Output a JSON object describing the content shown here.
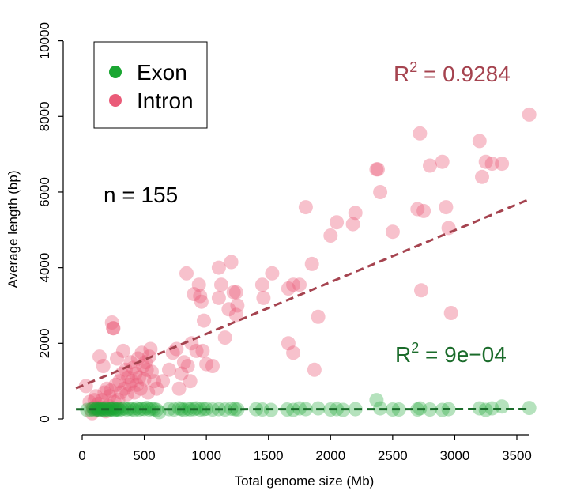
{
  "chart_data": {
    "type": "scatter",
    "xlabel": "Total genome size (Mb)",
    "ylabel": "Average length (bp)",
    "xlim": [
      -50,
      3700
    ],
    "ylim": [
      0,
      10000
    ],
    "xticks": [
      "0",
      "500",
      "1000",
      "1500",
      "2000",
      "2500",
      "3000",
      "3500"
    ],
    "xtick_values": [
      0,
      500,
      1000,
      1500,
      2000,
      2500,
      3000,
      3500
    ],
    "yticks": [
      "0",
      "2000",
      "4000",
      "6000",
      "8000",
      "10000"
    ],
    "ytick_values": [
      0,
      2000,
      4000,
      6000,
      8000,
      10000
    ],
    "legend": {
      "position": "top-left",
      "entries": [
        "Exon",
        "Intron"
      ]
    },
    "annotations": {
      "n_label": "n = 155",
      "intron_r2": {
        "base": "R",
        "sup": "2",
        "rest": " = 0.9284"
      },
      "exon_r2": {
        "base": "R",
        "sup": "2",
        "rest": " = 9e−04"
      }
    },
    "colors": {
      "exon": "#1aa632",
      "intron": "#ea5b78",
      "exon_fit": "#1a6b2a",
      "intron_fit": "#a5434f"
    },
    "series": [
      {
        "name": "Exon",
        "fit": {
          "intercept": 255,
          "slope": 0.002,
          "x_range": [
            -50,
            3600
          ]
        },
        "points": [
          [
            40,
            240
          ],
          [
            70,
            250
          ],
          [
            90,
            270
          ],
          [
            100,
            230
          ],
          [
            110,
            260
          ],
          [
            120,
            280
          ],
          [
            130,
            250
          ],
          [
            140,
            240
          ],
          [
            150,
            270
          ],
          [
            160,
            250
          ],
          [
            170,
            260
          ],
          [
            180,
            240
          ],
          [
            190,
            280
          ],
          [
            200,
            250
          ],
          [
            210,
            230
          ],
          [
            220,
            270
          ],
          [
            230,
            260
          ],
          [
            240,
            250
          ],
          [
            250,
            280
          ],
          [
            260,
            240
          ],
          [
            270,
            260
          ],
          [
            280,
            250
          ],
          [
            290,
            270
          ],
          [
            300,
            240
          ],
          [
            320,
            260
          ],
          [
            340,
            280
          ],
          [
            360,
            250
          ],
          [
            380,
            270
          ],
          [
            400,
            260
          ],
          [
            420,
            240
          ],
          [
            440,
            280
          ],
          [
            460,
            250
          ],
          [
            480,
            270
          ],
          [
            500,
            260
          ],
          [
            520,
            290
          ],
          [
            540,
            250
          ],
          [
            560,
            270
          ],
          [
            580,
            260
          ],
          [
            600,
            240
          ],
          [
            620,
            180
          ],
          [
            700,
            260
          ],
          [
            740,
            250
          ],
          [
            780,
            280
          ],
          [
            800,
            260
          ],
          [
            820,
            240
          ],
          [
            850,
            270
          ],
          [
            870,
            250
          ],
          [
            900,
            260
          ],
          [
            920,
            280
          ],
          [
            950,
            250
          ],
          [
            980,
            260
          ],
          [
            1000,
            270
          ],
          [
            1050,
            250
          ],
          [
            1100,
            260
          ],
          [
            1150,
            250
          ],
          [
            1200,
            270
          ],
          [
            1230,
            260
          ],
          [
            1250,
            250
          ],
          [
            1400,
            260
          ],
          [
            1450,
            250
          ],
          [
            1520,
            240
          ],
          [
            1650,
            250
          ],
          [
            1700,
            240
          ],
          [
            1750,
            280
          ],
          [
            1800,
            260
          ],
          [
            1900,
            280
          ],
          [
            2000,
            250
          ],
          [
            2050,
            260
          ],
          [
            2100,
            240
          ],
          [
            2200,
            260
          ],
          [
            2370,
            500
          ],
          [
            2400,
            280
          ],
          [
            2500,
            250
          ],
          [
            2550,
            250
          ],
          [
            2700,
            250
          ],
          [
            2720,
            280
          ],
          [
            2800,
            250
          ],
          [
            2900,
            240
          ],
          [
            2950,
            260
          ],
          [
            3200,
            280
          ],
          [
            3250,
            240
          ],
          [
            3300,
            280
          ],
          [
            3380,
            330
          ],
          [
            3600,
            290
          ]
        ]
      },
      {
        "name": "Intron",
        "fit": {
          "intercept": 880,
          "slope": 1.37,
          "x_range": [
            -50,
            3600
          ]
        },
        "points": [
          [
            30,
            870
          ],
          [
            60,
            450
          ],
          [
            80,
            150
          ],
          [
            90,
            300
          ],
          [
            100,
            500
          ],
          [
            110,
            600
          ],
          [
            120,
            250
          ],
          [
            130,
            400
          ],
          [
            140,
            1650
          ],
          [
            150,
            300
          ],
          [
            160,
            500
          ],
          [
            170,
            1400
          ],
          [
            180,
            700
          ],
          [
            190,
            200
          ],
          [
            200,
            800
          ],
          [
            210,
            350
          ],
          [
            220,
            600
          ],
          [
            230,
            750
          ],
          [
            240,
            2550
          ],
          [
            250,
            2400
          ],
          [
            260,
            450
          ],
          [
            270,
            900
          ],
          [
            280,
            1600
          ],
          [
            290,
            500
          ],
          [
            300,
            1000
          ],
          [
            310,
            700
          ],
          [
            320,
            1200
          ],
          [
            330,
            1800
          ],
          [
            340,
            800
          ],
          [
            350,
            1300
          ],
          [
            360,
            650
          ],
          [
            370,
            1100
          ],
          [
            380,
            900
          ],
          [
            390,
            1500
          ],
          [
            400,
            1000
          ],
          [
            410,
            1350
          ],
          [
            420,
            700
          ],
          [
            430,
            1200
          ],
          [
            440,
            900
          ],
          [
            450,
            1600
          ],
          [
            460,
            1100
          ],
          [
            470,
            800
          ],
          [
            480,
            1750
          ],
          [
            490,
            1400
          ],
          [
            500,
            1050
          ],
          [
            510,
            1500
          ],
          [
            520,
            1300
          ],
          [
            530,
            700
          ],
          [
            540,
            1650
          ],
          [
            560,
            1250
          ],
          [
            580,
            1000
          ],
          [
            600,
            800
          ],
          [
            650,
            1000
          ],
          [
            700,
            1300
          ],
          [
            730,
            1750
          ],
          [
            760,
            1850
          ],
          [
            780,
            800
          ],
          [
            800,
            1200
          ],
          [
            820,
            1500
          ],
          [
            840,
            3850
          ],
          [
            850,
            1400
          ],
          [
            870,
            1000
          ],
          [
            880,
            2000
          ],
          [
            900,
            3300
          ],
          [
            920,
            1800
          ],
          [
            940,
            3550
          ],
          [
            950,
            3250
          ],
          [
            960,
            3100
          ],
          [
            970,
            1800
          ],
          [
            980,
            2600
          ],
          [
            1000,
            1450
          ],
          [
            1050,
            1400
          ],
          [
            1100,
            4000
          ],
          [
            1120,
            3550
          ],
          [
            1150,
            2150
          ],
          [
            1180,
            2900
          ],
          [
            1200,
            4150
          ],
          [
            1220,
            3350
          ],
          [
            1240,
            3350
          ],
          [
            1250,
            3000
          ],
          [
            1450,
            3550
          ],
          [
            1460,
            3200
          ],
          [
            1530,
            3850
          ],
          [
            1660,
            3450
          ],
          [
            1700,
            3550
          ],
          [
            1750,
            3550
          ],
          [
            1800,
            5600
          ],
          [
            1850,
            4100
          ],
          [
            1870,
            1300
          ],
          [
            1900,
            2700
          ],
          [
            2000,
            4850
          ],
          [
            2050,
            5200
          ],
          [
            2180,
            5150
          ],
          [
            2200,
            5450
          ],
          [
            2370,
            6600
          ],
          [
            2380,
            6600
          ],
          [
            2400,
            6000
          ],
          [
            2500,
            4950
          ],
          [
            2700,
            5550
          ],
          [
            2720,
            7550
          ],
          [
            2730,
            3400
          ],
          [
            2750,
            5500
          ],
          [
            2800,
            6700
          ],
          [
            2900,
            6800
          ],
          [
            2930,
            5600
          ],
          [
            2950,
            5050
          ],
          [
            2970,
            2800
          ],
          [
            3200,
            7350
          ],
          [
            3220,
            6400
          ],
          [
            3250,
            6800
          ],
          [
            3300,
            6750
          ],
          [
            3380,
            6750
          ],
          [
            3600,
            8050
          ],
          [
            1700,
            1750
          ],
          [
            1660,
            2000
          ],
          [
            1240,
            2750
          ],
          [
            1100,
            3200
          ],
          [
            550,
            1850
          ],
          [
            250,
            2400
          ]
        ]
      }
    ]
  }
}
